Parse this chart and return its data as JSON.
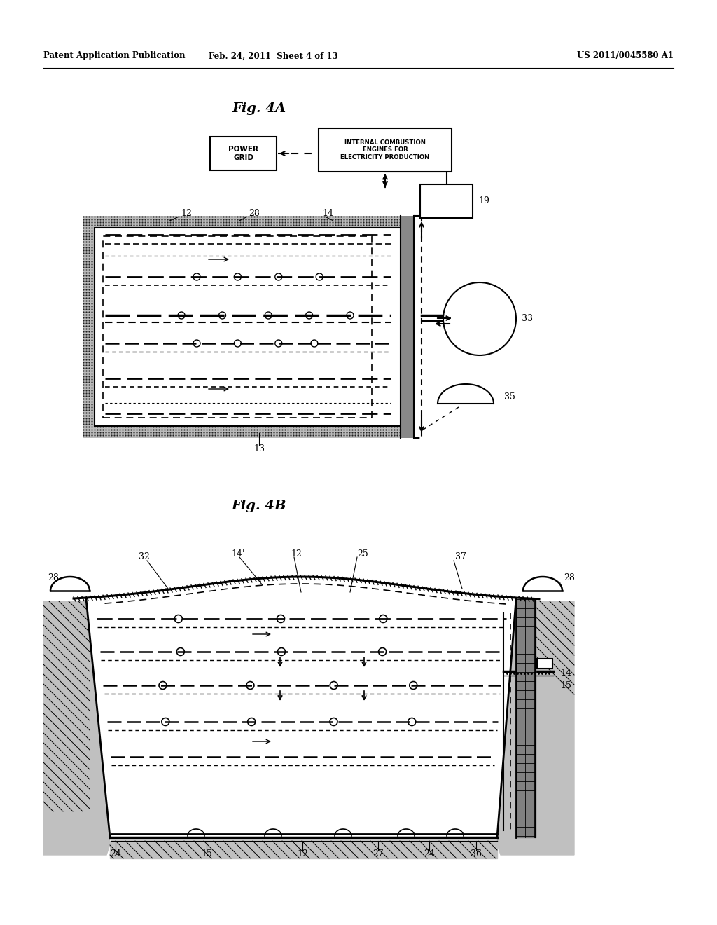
{
  "header_left": "Patent Application Publication",
  "header_mid": "Feb. 24, 2011  Sheet 4 of 13",
  "header_right": "US 2011/0045580 A1",
  "fig4A_title": "Fig. 4A",
  "fig4B_title": "Fig. 4B",
  "bg_color": "#ffffff",
  "text_color": "#000000"
}
